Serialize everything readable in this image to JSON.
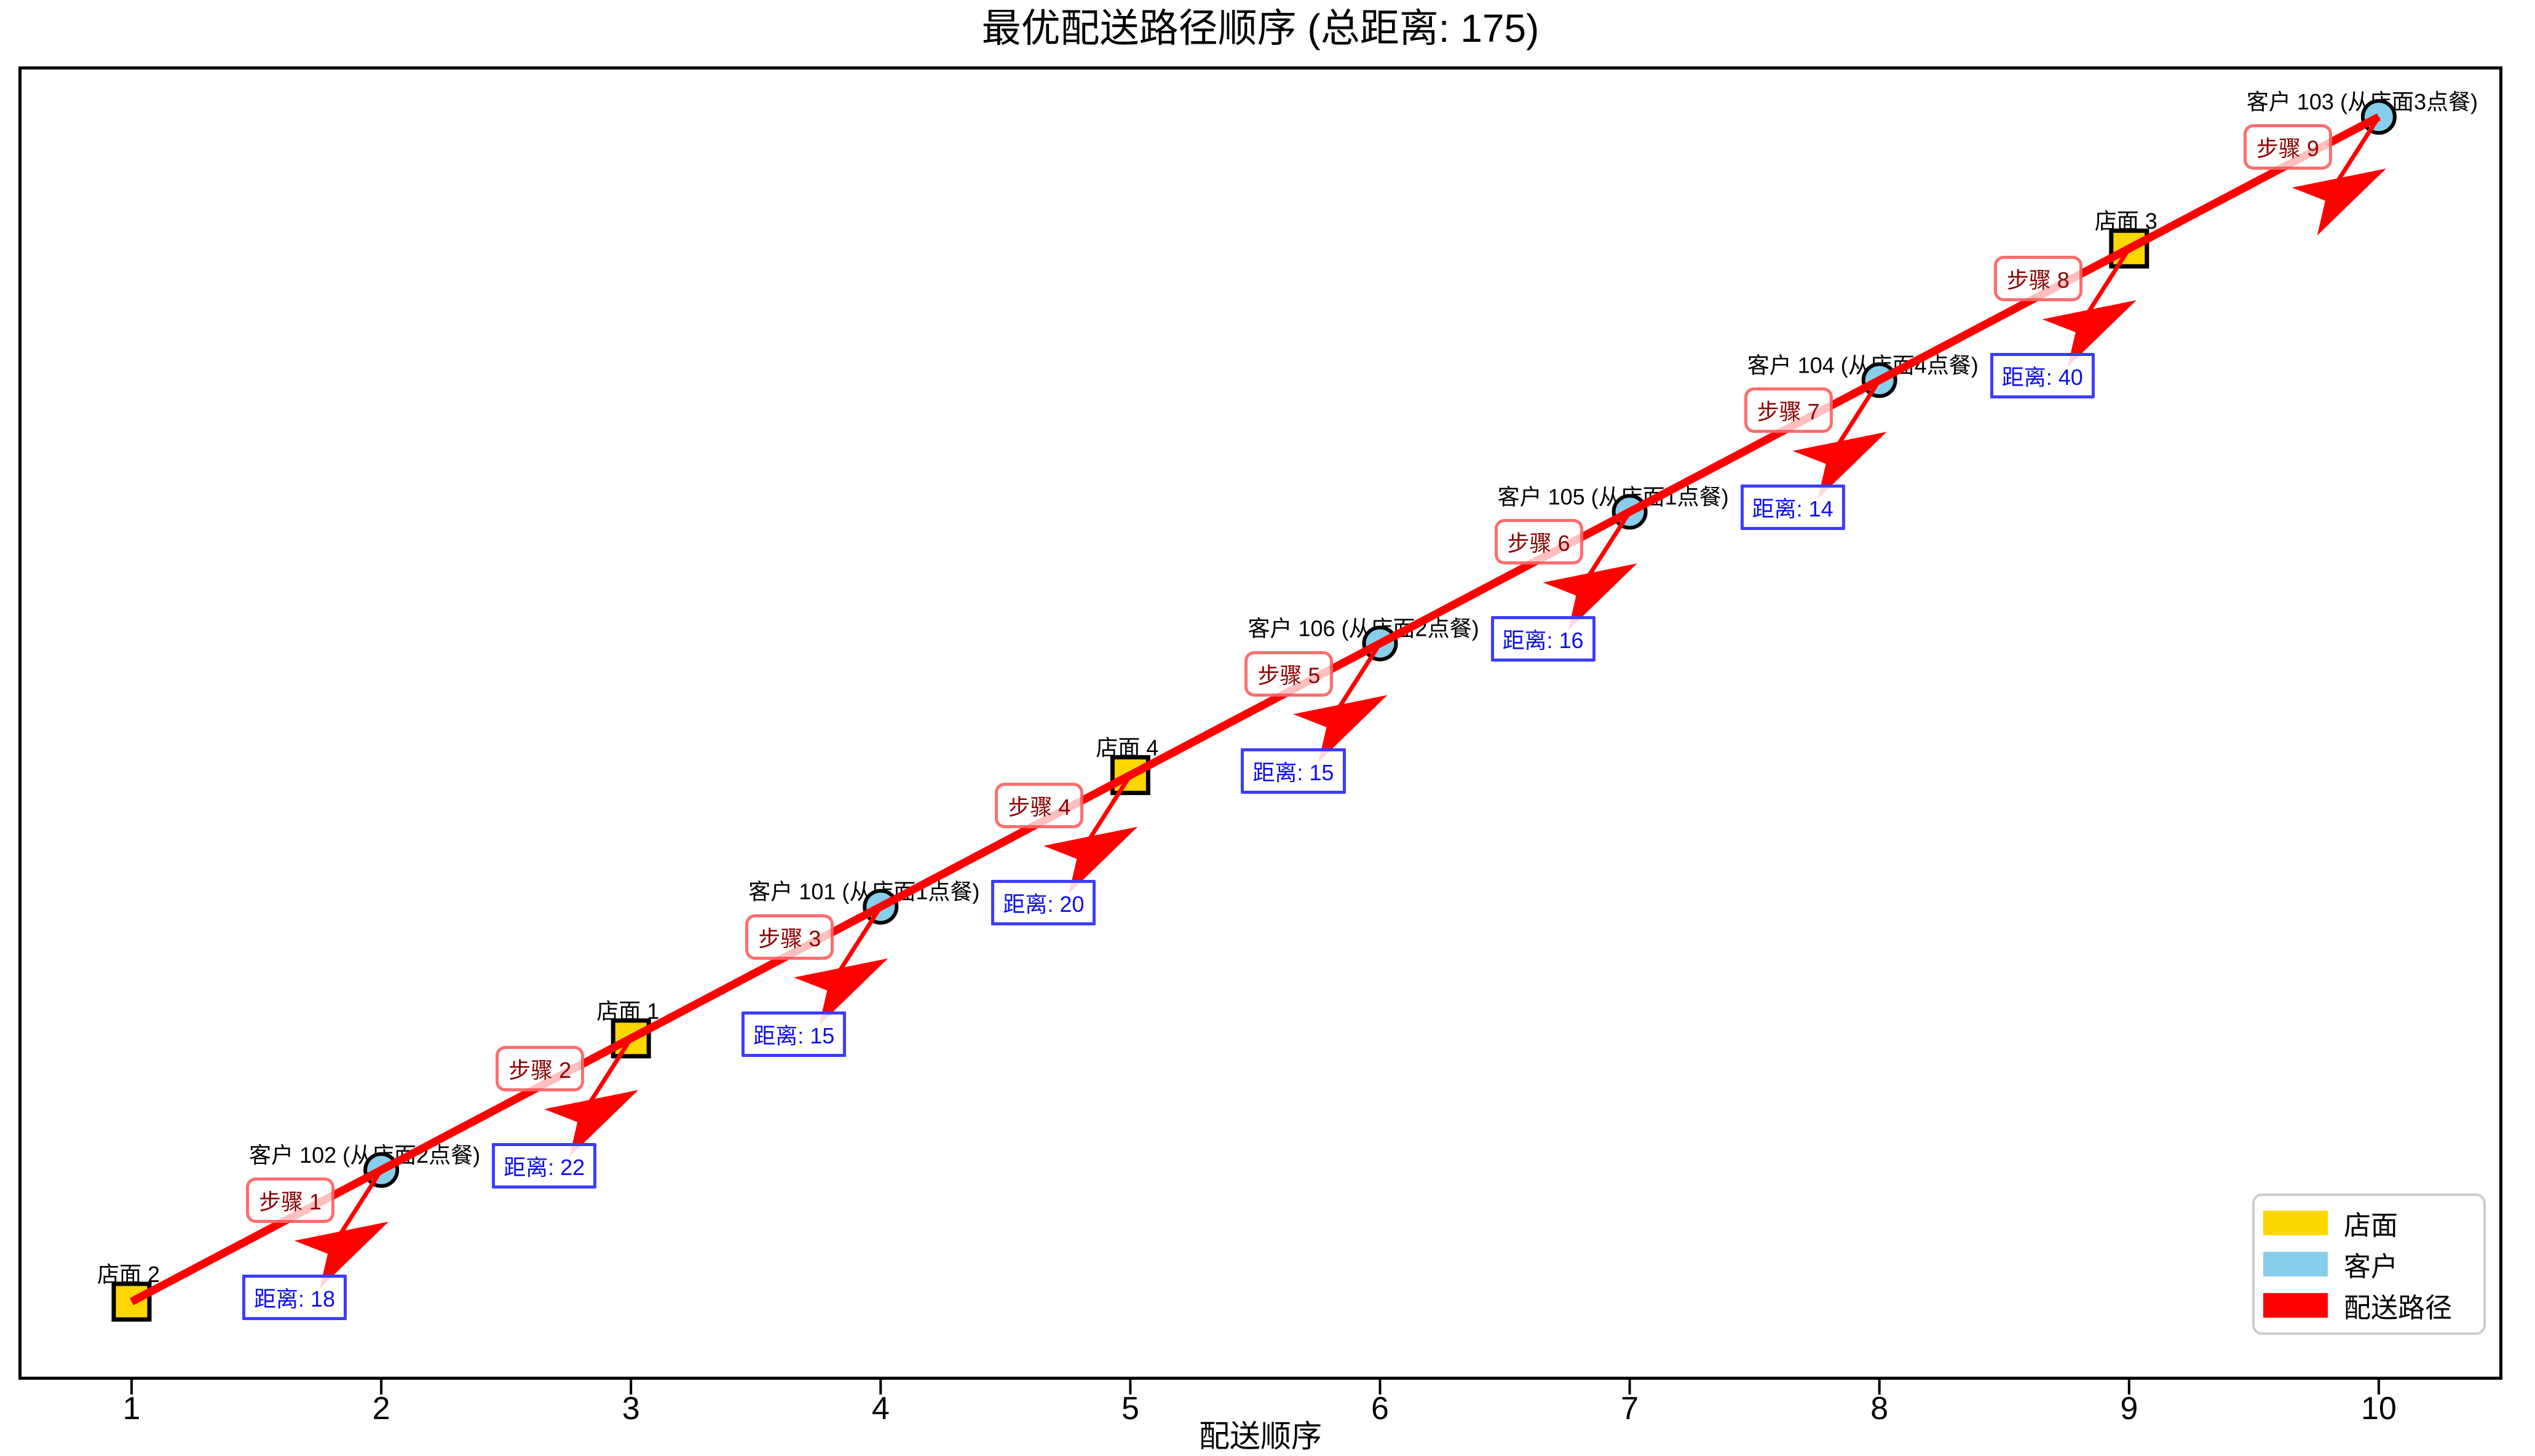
{
  "chart_data": {
    "type": "scatter",
    "title": "最优配送路径顺序 (总距离: 175)",
    "xlabel": "配送顺序",
    "ylabel": "",
    "total_distance": 175,
    "x_ticks": [
      "1",
      "2",
      "3",
      "4",
      "5",
      "6",
      "7",
      "8",
      "9",
      "10"
    ],
    "xlim": [
      0.55,
      10.45
    ],
    "grid": false,
    "legend_position": "lower right",
    "nodes": [
      {
        "order": 1,
        "kind": "store",
        "label": "店面 2"
      },
      {
        "order": 2,
        "kind": "customer",
        "label": "客户 102 (从店面2点餐)"
      },
      {
        "order": 3,
        "kind": "store",
        "label": "店面 1"
      },
      {
        "order": 4,
        "kind": "customer",
        "label": "客户 101 (从店面1点餐)"
      },
      {
        "order": 5,
        "kind": "store",
        "label": "店面 4"
      },
      {
        "order": 6,
        "kind": "customer",
        "label": "客户 106 (从店面2点餐)"
      },
      {
        "order": 7,
        "kind": "customer",
        "label": "客户 105 (从店面1点餐)"
      },
      {
        "order": 8,
        "kind": "customer",
        "label": "客户 104 (从店面4点餐)"
      },
      {
        "order": 9,
        "kind": "store",
        "label": "店面 3"
      },
      {
        "order": 10,
        "kind": "customer",
        "label": "客户 103 (从店面3点餐)"
      }
    ],
    "steps": [
      {
        "step": 1,
        "label": "步骤 1",
        "distance": 18,
        "distance_label": "距离: 18"
      },
      {
        "step": 2,
        "label": "步骤 2",
        "distance": 22,
        "distance_label": "距离: 22"
      },
      {
        "step": 3,
        "label": "步骤 3",
        "distance": 15,
        "distance_label": "距离: 15"
      },
      {
        "step": 4,
        "label": "步骤 4",
        "distance": 20,
        "distance_label": "距离: 20"
      },
      {
        "step": 5,
        "label": "步骤 5",
        "distance": 15,
        "distance_label": "距离: 15"
      },
      {
        "step": 6,
        "label": "步骤 6",
        "distance": 16,
        "distance_label": "距离: 16"
      },
      {
        "step": 7,
        "label": "步骤 7",
        "distance": 14,
        "distance_label": "距离: 14"
      },
      {
        "step": 8,
        "label": "步骤 8",
        "distance": 40,
        "distance_label": "距离: 40"
      },
      {
        "step": 9,
        "label": "步骤 9",
        "distance": null,
        "distance_label": null
      }
    ],
    "legend": [
      {
        "label": "店面",
        "color": "#FFD700"
      },
      {
        "label": "客户",
        "color": "#87CEEB"
      },
      {
        "label": "配送路径",
        "color": "#FF0000"
      }
    ]
  },
  "colors": {
    "store": "#FFD700",
    "customer": "#87CEEB",
    "route": "#FF0000",
    "marker_edge": "#000000",
    "step_text": "#8B0000",
    "step_border": "#FF5C5C",
    "distance_text": "#0D0DEE",
    "distance_border": "#3D3DFF",
    "axis": "#000000"
  }
}
